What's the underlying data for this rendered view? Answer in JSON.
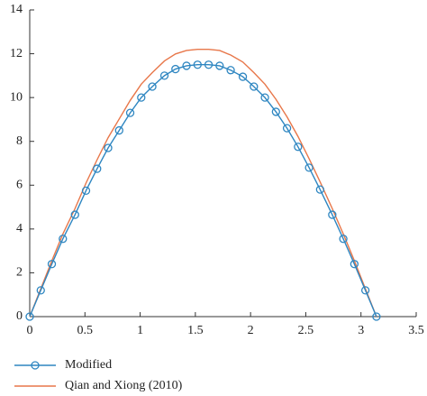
{
  "chart_data": {
    "type": "line",
    "x": [
      0,
      0.1,
      0.2,
      0.3,
      0.41,
      0.51,
      0.61,
      0.71,
      0.81,
      0.91,
      1.01,
      1.11,
      1.22,
      1.32,
      1.42,
      1.52,
      1.62,
      1.72,
      1.82,
      1.93,
      2.03,
      2.13,
      2.23,
      2.33,
      2.43,
      2.53,
      2.63,
      2.74,
      2.84,
      2.94,
      3.04,
      3.14
    ],
    "series": [
      {
        "name": "Modified",
        "color": "#2e86c1",
        "marker": "circle",
        "values": [
          0,
          1.2,
          2.4,
          3.55,
          4.65,
          5.75,
          6.75,
          7.7,
          8.5,
          9.3,
          10.0,
          10.5,
          11.0,
          11.3,
          11.45,
          11.5,
          11.5,
          11.45,
          11.25,
          10.95,
          10.5,
          10.0,
          9.35,
          8.6,
          7.75,
          6.8,
          5.8,
          4.65,
          3.55,
          2.4,
          1.2,
          0
        ]
      },
      {
        "name": "Qian and Xiong (2010)",
        "color": "#e8774a",
        "marker": "none",
        "values": [
          0,
          1.27,
          2.55,
          3.77,
          4.93,
          6.1,
          7.16,
          8.17,
          9.02,
          9.87,
          10.61,
          11.14,
          11.67,
          11.99,
          12.15,
          12.2,
          12.2,
          12.15,
          11.94,
          11.62,
          11.14,
          10.61,
          9.92,
          9.12,
          8.22,
          7.21,
          6.15,
          4.93,
          3.77,
          2.55,
          1.27,
          0
        ]
      }
    ],
    "xlim": [
      0,
      3.5
    ],
    "xticks": [
      0,
      0.5,
      1,
      1.5,
      2,
      2.5,
      3,
      3.5
    ],
    "ylim": [
      0,
      14
    ],
    "yticks": [
      0,
      2,
      4,
      6,
      8,
      10,
      12,
      14
    ]
  }
}
